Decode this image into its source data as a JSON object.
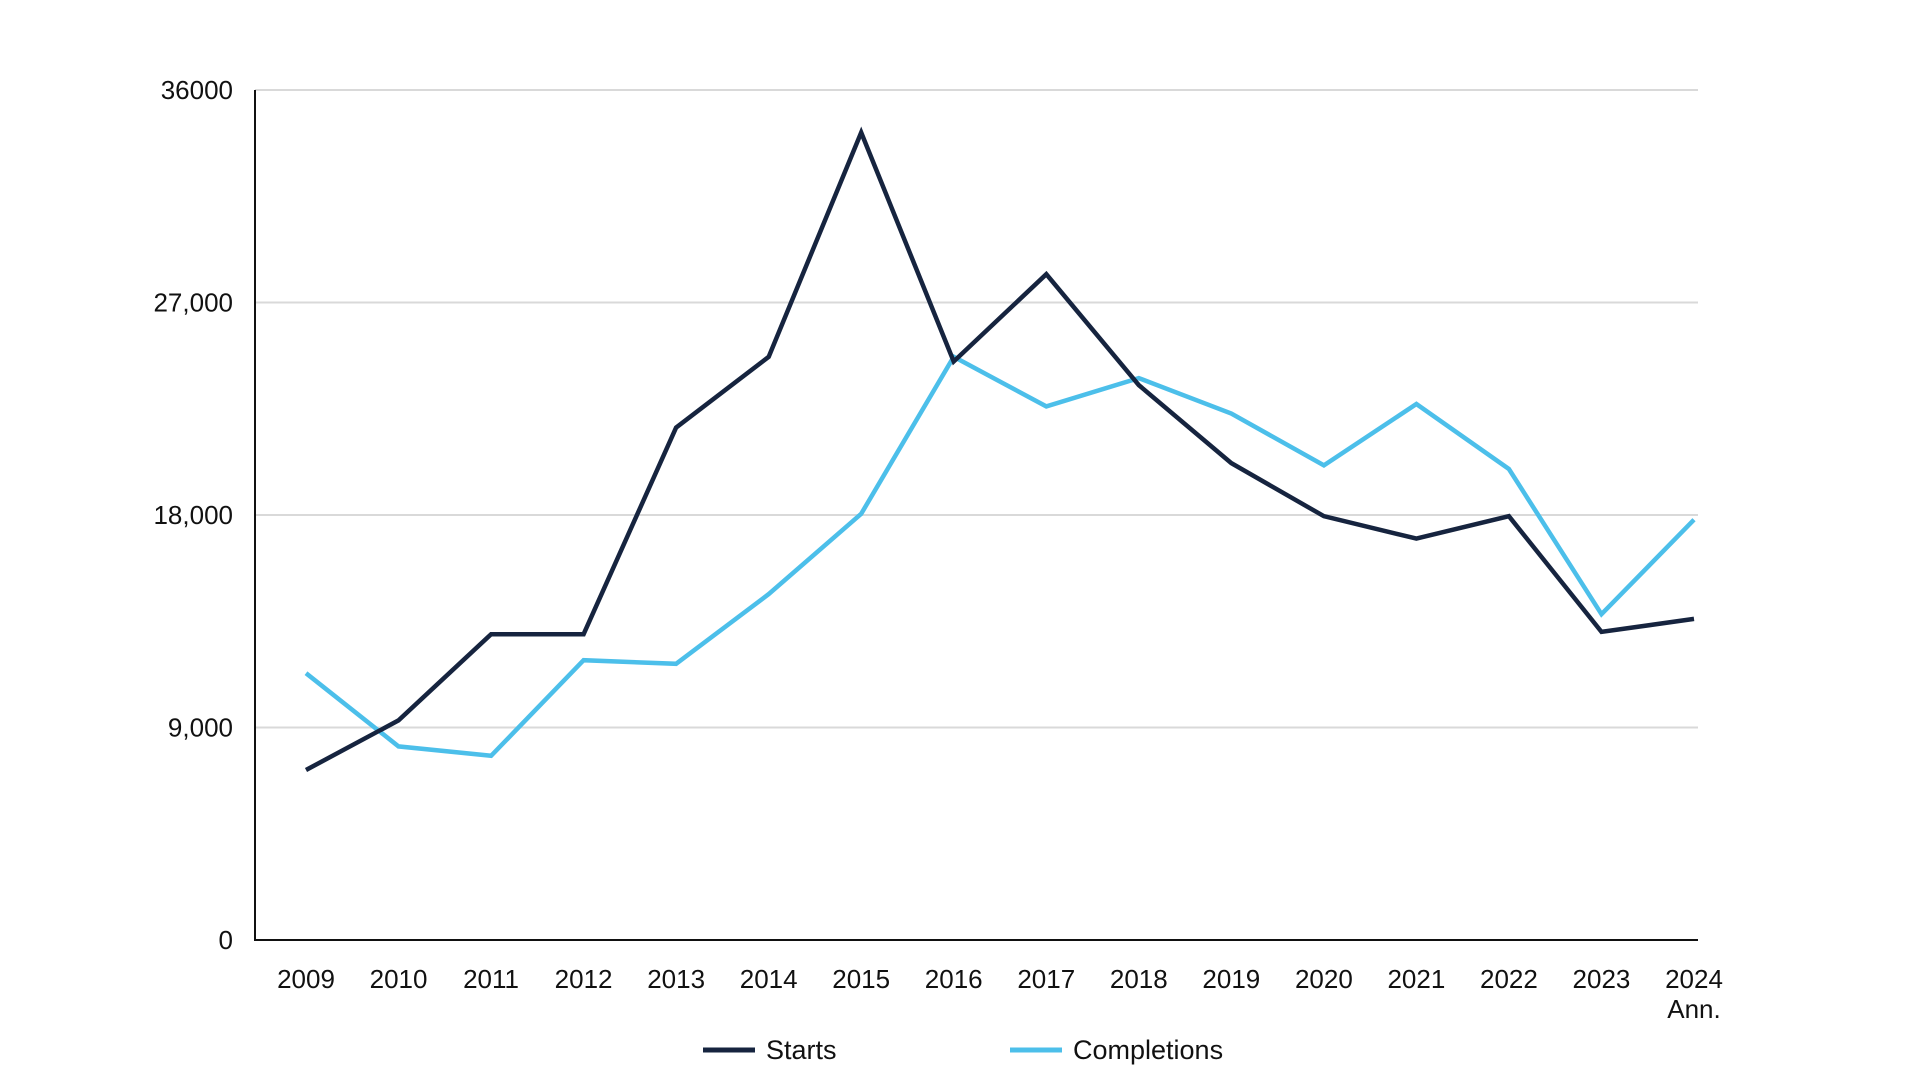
{
  "colors": {
    "starts": "#16243f",
    "completions": "#4cbfea",
    "gridline": "#d9d9d9",
    "axis": "#111111",
    "text": "#111111"
  },
  "chart_data": {
    "type": "line",
    "title": "",
    "xlabel": "",
    "ylabel": "",
    "x": [
      "2009",
      "2010",
      "2011",
      "2012",
      "2013",
      "2014",
      "2015",
      "2016",
      "2017",
      "2018",
      "2019",
      "2020",
      "2021",
      "2022",
      "2023",
      "2024"
    ],
    "x_tick_labels": [
      [
        "2009"
      ],
      [
        "2010"
      ],
      [
        "2011"
      ],
      [
        "2012"
      ],
      [
        "2013"
      ],
      [
        "2014"
      ],
      [
        "2015"
      ],
      [
        "2016"
      ],
      [
        "2017"
      ],
      [
        "2018"
      ],
      [
        "2019"
      ],
      [
        "2020"
      ],
      [
        "2021"
      ],
      [
        "2022"
      ],
      [
        "2023"
      ],
      [
        "2024",
        "Ann."
      ]
    ],
    "ylim": [
      0,
      36000
    ],
    "y_ticks": [
      0,
      9000,
      18000,
      27000,
      36000
    ],
    "y_tick_labels": [
      "0",
      "9,000",
      "18,000",
      "27,000",
      "36000"
    ],
    "grid": true,
    "legend_position": "bottom",
    "series": [
      {
        "name": "Starts",
        "color_key": "starts",
        "values": [
          7200,
          9300,
          12950,
          12950,
          21700,
          24700,
          34200,
          24500,
          28200,
          23500,
          20200,
          17950,
          17000,
          17950,
          13050,
          13600
        ]
      },
      {
        "name": "Completions",
        "color_key": "completions",
        "values": [
          11300,
          8200,
          7800,
          11850,
          11700,
          14650,
          18050,
          24700,
          22600,
          23800,
          22300,
          20100,
          22700,
          19950,
          13800,
          17800
        ]
      }
    ]
  }
}
